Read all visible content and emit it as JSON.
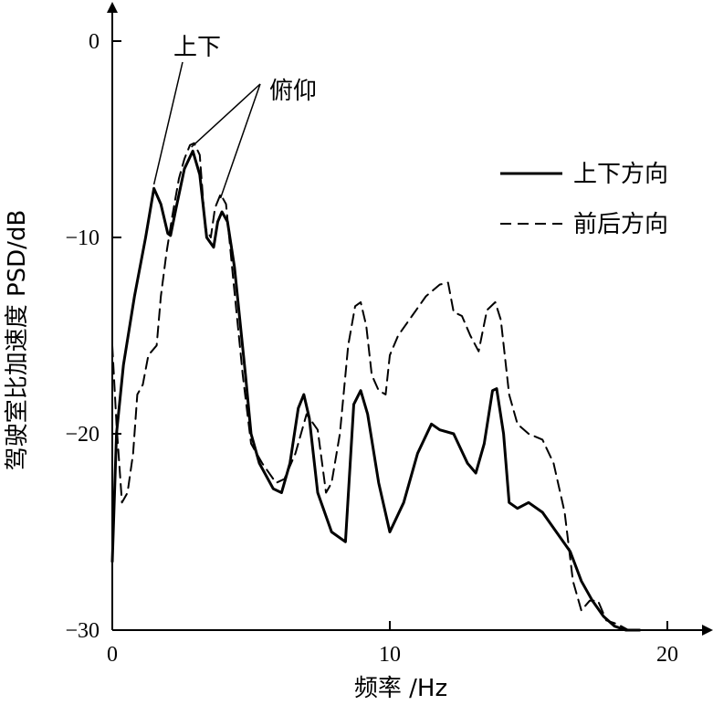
{
  "chart_data": {
    "type": "line",
    "xlabel": "频率 /Hz",
    "ylabel": "驾驶室比加速度 PSD/dB",
    "xlim": [
      0,
      21
    ],
    "ylim": [
      -30,
      1.5
    ],
    "xticks": [
      0,
      10,
      20
    ],
    "xtick_labels": [
      "0",
      "10",
      "20"
    ],
    "yticks": [
      0,
      -10,
      -20,
      -30
    ],
    "ytick_labels": [
      "0",
      "−10",
      "−20",
      "−30"
    ],
    "grid": false,
    "legend_position": "top-right",
    "series": [
      {
        "name": "上下方向",
        "style": "solid",
        "color": "#000000",
        "x": [
          0,
          0.15,
          0.4,
          0.8,
          1.2,
          1.5,
          1.75,
          2.0,
          2.1,
          2.3,
          2.6,
          2.9,
          3.15,
          3.4,
          3.65,
          3.8,
          3.95,
          4.15,
          4.4,
          4.8,
          5.0,
          5.3,
          5.8,
          6.1,
          6.4,
          6.7,
          6.9,
          7.1,
          7.4,
          7.9,
          8.4,
          8.7,
          8.95,
          9.2,
          9.6,
          10.0,
          10.5,
          11.0,
          11.5,
          11.8,
          12.3,
          12.8,
          13.1,
          13.4,
          13.7,
          13.85,
          14.1,
          14.3,
          14.6,
          15.0,
          15.5,
          16.0,
          16.5,
          16.9,
          17.3,
          17.7,
          18.1,
          18.5,
          19.0
        ],
        "y": [
          -26.5,
          -20,
          -16.5,
          -13,
          -10,
          -7.5,
          -8.3,
          -9.8,
          -9.9,
          -8.5,
          -6.5,
          -5.6,
          -6.8,
          -10.0,
          -10.5,
          -9.2,
          -8.7,
          -9.2,
          -11.5,
          -17.0,
          -20.0,
          -21.5,
          -22.8,
          -23.0,
          -21.5,
          -18.7,
          -18.0,
          -19.2,
          -23.0,
          -25.0,
          -25.5,
          -18.5,
          -17.8,
          -19.0,
          -22.5,
          -25.0,
          -23.5,
          -21.0,
          -19.5,
          -19.8,
          -20.0,
          -21.5,
          -22.0,
          -20.5,
          -17.8,
          -17.7,
          -20.0,
          -23.5,
          -23.8,
          -23.5,
          -24.0,
          -25.0,
          -26.0,
          -27.5,
          -28.5,
          -29.3,
          -29.8,
          -30.0,
          -30.0
        ]
      },
      {
        "name": "前后方向",
        "style": "dashed",
        "color": "#000000",
        "x": [
          0,
          0.15,
          0.35,
          0.55,
          0.75,
          0.9,
          1.1,
          1.3,
          1.6,
          1.75,
          1.95,
          2.15,
          2.4,
          2.6,
          2.8,
          2.95,
          3.15,
          3.35,
          3.55,
          3.7,
          3.9,
          4.1,
          4.35,
          4.7,
          5.0,
          5.4,
          5.9,
          6.2,
          6.6,
          7.0,
          7.4,
          7.7,
          7.9,
          8.2,
          8.5,
          8.75,
          8.95,
          9.15,
          9.35,
          9.6,
          9.85,
          10.0,
          10.3,
          10.8,
          11.3,
          11.8,
          12.1,
          12.3,
          12.6,
          12.9,
          13.2,
          13.5,
          13.8,
          14.0,
          14.3,
          14.6,
          15.0,
          15.5,
          15.9,
          16.3,
          16.6,
          16.9,
          17.2,
          17.5,
          17.8,
          18.2,
          18.6,
          19.0
        ],
        "y": [
          -15.5,
          -19.5,
          -23.5,
          -23.0,
          -21.0,
          -18.0,
          -17.5,
          -16.0,
          -15.5,
          -13.0,
          -10.8,
          -9.0,
          -7.0,
          -6.0,
          -5.3,
          -5.2,
          -5.8,
          -9.5,
          -10.0,
          -8.5,
          -7.8,
          -8.3,
          -12.0,
          -17.0,
          -20.5,
          -21.5,
          -22.5,
          -22.3,
          -21.0,
          -19.0,
          -19.8,
          -23.0,
          -22.5,
          -20.0,
          -15.5,
          -13.5,
          -13.3,
          -14.5,
          -17.0,
          -17.8,
          -18.0,
          -16.0,
          -15.0,
          -14.0,
          -13.0,
          -12.4,
          -12.3,
          -13.8,
          -14.0,
          -15.0,
          -15.8,
          -13.7,
          -13.3,
          -14.2,
          -18.0,
          -19.5,
          -20.0,
          -20.3,
          -21.5,
          -24.0,
          -27.5,
          -29.0,
          -28.5,
          -28.5,
          -29.5,
          -29.7,
          -30.0,
          -30.0
        ]
      }
    ],
    "legend": [
      {
        "label": "上下方向",
        "style": "solid"
      },
      {
        "label": "前后方向",
        "style": "dashed"
      }
    ],
    "annotations": [
      {
        "text": "上下",
        "targets": [
          [
            1.5,
            -7.3
          ]
        ]
      },
      {
        "text": "俯仰",
        "targets": [
          [
            2.85,
            -5.4
          ],
          [
            3.9,
            -8.0
          ]
        ]
      }
    ]
  }
}
